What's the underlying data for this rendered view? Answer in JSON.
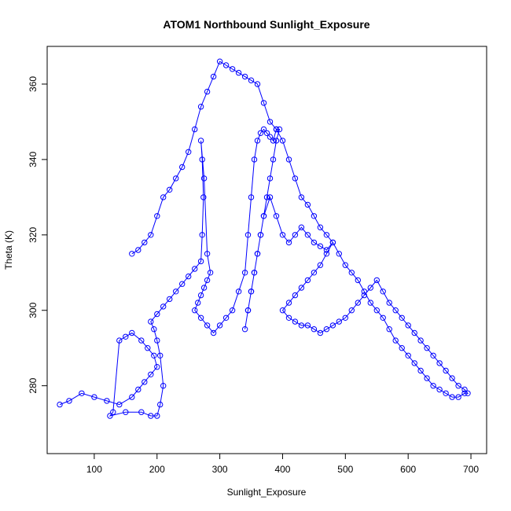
{
  "chart_data": {
    "type": "scatter",
    "title": "ATOM1 Northbound Sunlight_Exposure",
    "xlabel": "Sunlight_Exposure",
    "ylabel": "Theta (K)",
    "xlim": [
      25,
      725
    ],
    "ylim": [
      262,
      370
    ],
    "x_ticks": [
      100,
      200,
      300,
      400,
      500,
      600,
      700
    ],
    "y_ticks": [
      280,
      300,
      320,
      340,
      360
    ],
    "marker": "open-circle",
    "connected": true,
    "color": "#0000ff",
    "grid": false,
    "series": [
      {
        "x": [
          45,
          60,
          80,
          100,
          120,
          140,
          160,
          170,
          180,
          190,
          200,
          195,
          185,
          175,
          160,
          150,
          140,
          130,
          125,
          150,
          175,
          190,
          200,
          205,
          210,
          205,
          200,
          195,
          190,
          200,
          210,
          220,
          230,
          240,
          250,
          260,
          270,
          272,
          274,
          272,
          270,
          275,
          280,
          285,
          280,
          275,
          270,
          265,
          260,
          270,
          280,
          290,
          300,
          310,
          320,
          330,
          340,
          345,
          350,
          355,
          360,
          365,
          370,
          375,
          380,
          385,
          390,
          395,
          390,
          385,
          380,
          375,
          370,
          365,
          360,
          355,
          350,
          345,
          340,
          345,
          350,
          355,
          360,
          365,
          370,
          380,
          390,
          400,
          410,
          420,
          430,
          440,
          450,
          460,
          470,
          480,
          470,
          460,
          450,
          440,
          430,
          420,
          410,
          400,
          410,
          420,
          430,
          440,
          450,
          460,
          470,
          480,
          490,
          500,
          510,
          520,
          530,
          540,
          550,
          560,
          570,
          580,
          590,
          600,
          610,
          620,
          630,
          640,
          650,
          660,
          670,
          680,
          690,
          695,
          690,
          680,
          670,
          660,
          650,
          640,
          630,
          620,
          610,
          600,
          590,
          580,
          570,
          560,
          550,
          540,
          530,
          520,
          510,
          500,
          490,
          480,
          470,
          460,
          450,
          440,
          430,
          420,
          410,
          400,
          390,
          380,
          370,
          360,
          350,
          340,
          330,
          320,
          310,
          300,
          290,
          280,
          270,
          260,
          250,
          240,
          230,
          220,
          210,
          200,
          190,
          180,
          170,
          160
        ],
        "y": [
          275,
          276,
          278,
          277,
          276,
          275,
          277,
          279,
          281,
          283,
          285,
          288,
          290,
          292,
          294,
          293,
          292,
          273,
          272,
          273,
          273,
          272,
          272,
          275,
          280,
          288,
          292,
          295,
          297,
          299,
          301,
          303,
          305,
          307,
          309,
          311,
          313,
          320,
          330,
          340,
          345,
          335,
          315,
          310,
          308,
          306,
          304,
          302,
          300,
          298,
          296,
          294,
          296,
          298,
          300,
          305,
          310,
          320,
          330,
          340,
          345,
          347,
          348,
          347,
          346,
          345,
          348,
          348,
          345,
          340,
          335,
          330,
          325,
          320,
          315,
          310,
          305,
          300,
          295,
          300,
          305,
          310,
          315,
          320,
          325,
          330,
          325,
          320,
          318,
          320,
          322,
          320,
          318,
          317,
          316,
          318,
          315,
          312,
          310,
          308,
          306,
          304,
          302,
          300,
          298,
          297,
          296,
          296,
          295,
          294,
          295,
          296,
          297,
          298,
          300,
          302,
          304,
          306,
          308,
          305,
          302,
          300,
          298,
          296,
          294,
          292,
          290,
          288,
          286,
          284,
          282,
          280,
          279,
          278,
          278,
          277,
          277,
          278,
          279,
          280,
          282,
          284,
          286,
          288,
          290,
          292,
          295,
          298,
          300,
          302,
          305,
          308,
          310,
          312,
          315,
          318,
          320,
          322,
          325,
          328,
          330,
          335,
          340,
          345,
          348,
          350,
          355,
          360,
          361,
          362,
          363,
          364,
          365,
          366,
          362,
          358,
          354,
          348,
          342,
          338,
          335,
          332,
          330,
          325,
          320,
          318,
          316,
          315
        ]
      }
    ]
  }
}
